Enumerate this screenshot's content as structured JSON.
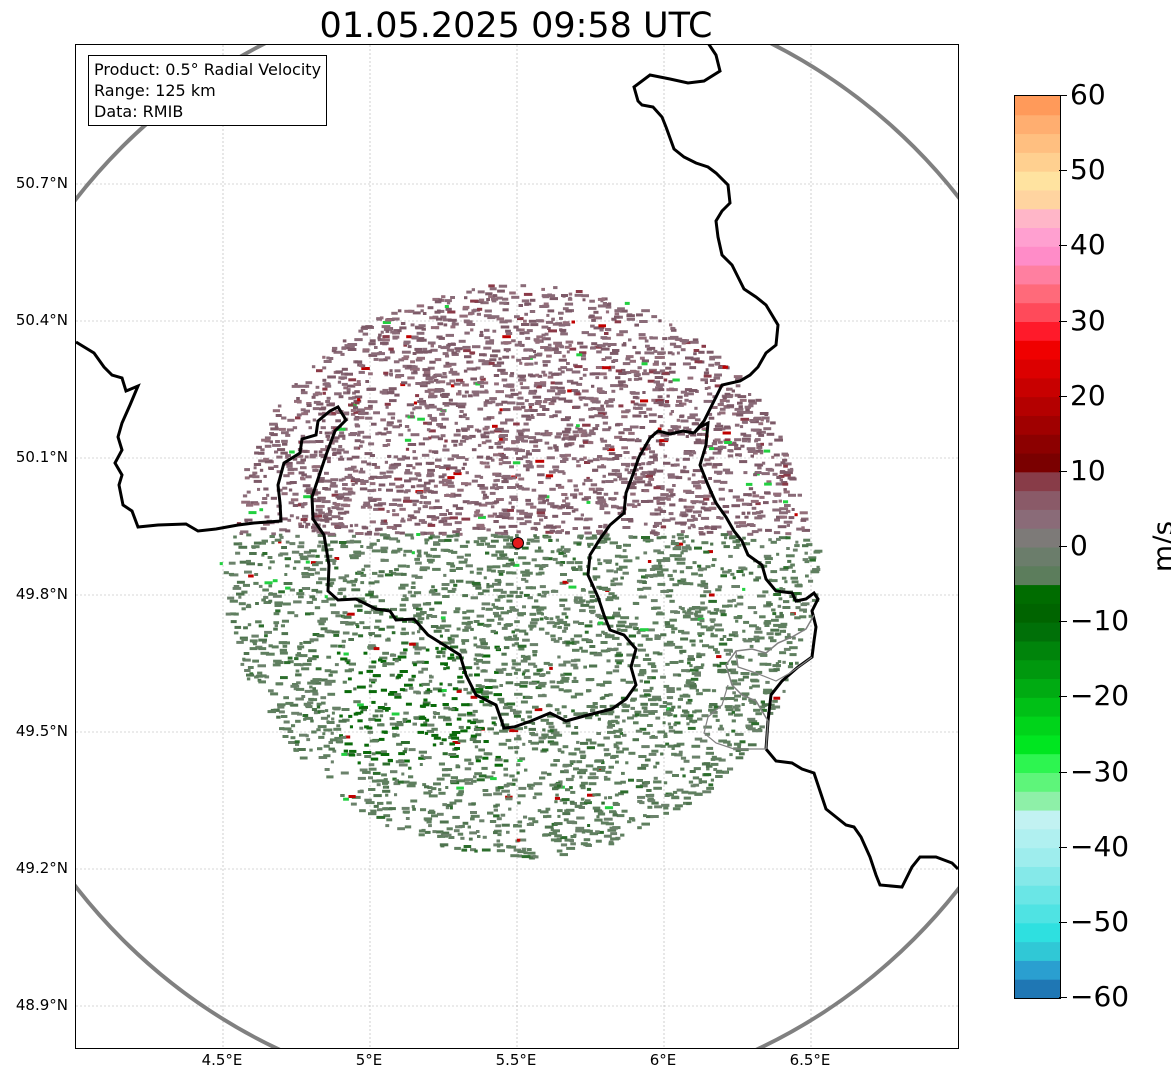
{
  "title": "01.05.2025 09:58 UTC",
  "info": {
    "product": "Product: 0.5° Radial Velocity",
    "range": "Range: 125 km",
    "data": "Data: RMIB"
  },
  "map": {
    "lon_range": [
      4.0,
      7.0
    ],
    "lat_range": [
      48.8,
      51.1
    ],
    "radar_site": {
      "lon": 5.5,
      "lat": 49.91
    },
    "range_ring_km": 125,
    "gridlines": true,
    "lon_ticks": [
      {
        "value": 4.5,
        "label": "4.5°E"
      },
      {
        "value": 5.0,
        "label": "5°E"
      },
      {
        "value": 5.5,
        "label": "5.5°E"
      },
      {
        "value": 6.0,
        "label": "6°E"
      },
      {
        "value": 6.5,
        "label": "6.5°E"
      }
    ],
    "lat_ticks": [
      {
        "value": 50.7,
        "label": "50.7°N"
      },
      {
        "value": 50.4,
        "label": "50.4°N"
      },
      {
        "value": 50.1,
        "label": "50.1°N"
      },
      {
        "value": 49.8,
        "label": "49.8°N"
      },
      {
        "value": 49.5,
        "label": "49.5°N"
      },
      {
        "value": 49.2,
        "label": "49.2°N"
      },
      {
        "value": 48.9,
        "label": "48.9°N"
      }
    ],
    "ring_color": "#808080",
    "border_color": "#000000",
    "site_color": "#e31a1c"
  },
  "colorbar": {
    "label": "m/s",
    "min": -60,
    "max": 60,
    "ticks": [
      {
        "value": 60,
        "label": "60"
      },
      {
        "value": 50,
        "label": "50"
      },
      {
        "value": 40,
        "label": "40"
      },
      {
        "value": 30,
        "label": "30"
      },
      {
        "value": 20,
        "label": "20"
      },
      {
        "value": 10,
        "label": "10"
      },
      {
        "value": 0,
        "label": "0"
      },
      {
        "value": -10,
        "label": "−10"
      },
      {
        "value": -20,
        "label": "−20"
      },
      {
        "value": -30,
        "label": "−30"
      },
      {
        "value": -40,
        "label": "−40"
      },
      {
        "value": -50,
        "label": "−50"
      },
      {
        "value": -60,
        "label": "−60"
      }
    ],
    "colors": [
      "#1f77b4",
      "#2a9fd0",
      "#30c8d6",
      "#2ee0e0",
      "#4fe3e3",
      "#6ae6e6",
      "#85e9e9",
      "#9eeded",
      "#b0f0f0",
      "#c2f2f2",
      "#8ef0a8",
      "#5ef57a",
      "#2df550",
      "#00e620",
      "#00d41a",
      "#00c016",
      "#00ab12",
      "#00980e",
      "#00840b",
      "#007008",
      "#006400",
      "#006c00",
      "#5c7d5c",
      "#6b7d6b",
      "#7d7a78",
      "#8a6b78",
      "#8a5a68",
      "#883c48",
      "#7a0000",
      "#8c0000",
      "#a00000",
      "#b40000",
      "#c80000",
      "#dc0000",
      "#f00000",
      "#ff1a2a",
      "#ff4a5a",
      "#ff6a7a",
      "#ff7fa0",
      "#ff8cc8",
      "#ffa0d0",
      "#ffb6c8",
      "#ffd4a0",
      "#ffe3a0",
      "#ffd090",
      "#ffbf80",
      "#ffae70",
      "#ff9a5a"
    ]
  }
}
